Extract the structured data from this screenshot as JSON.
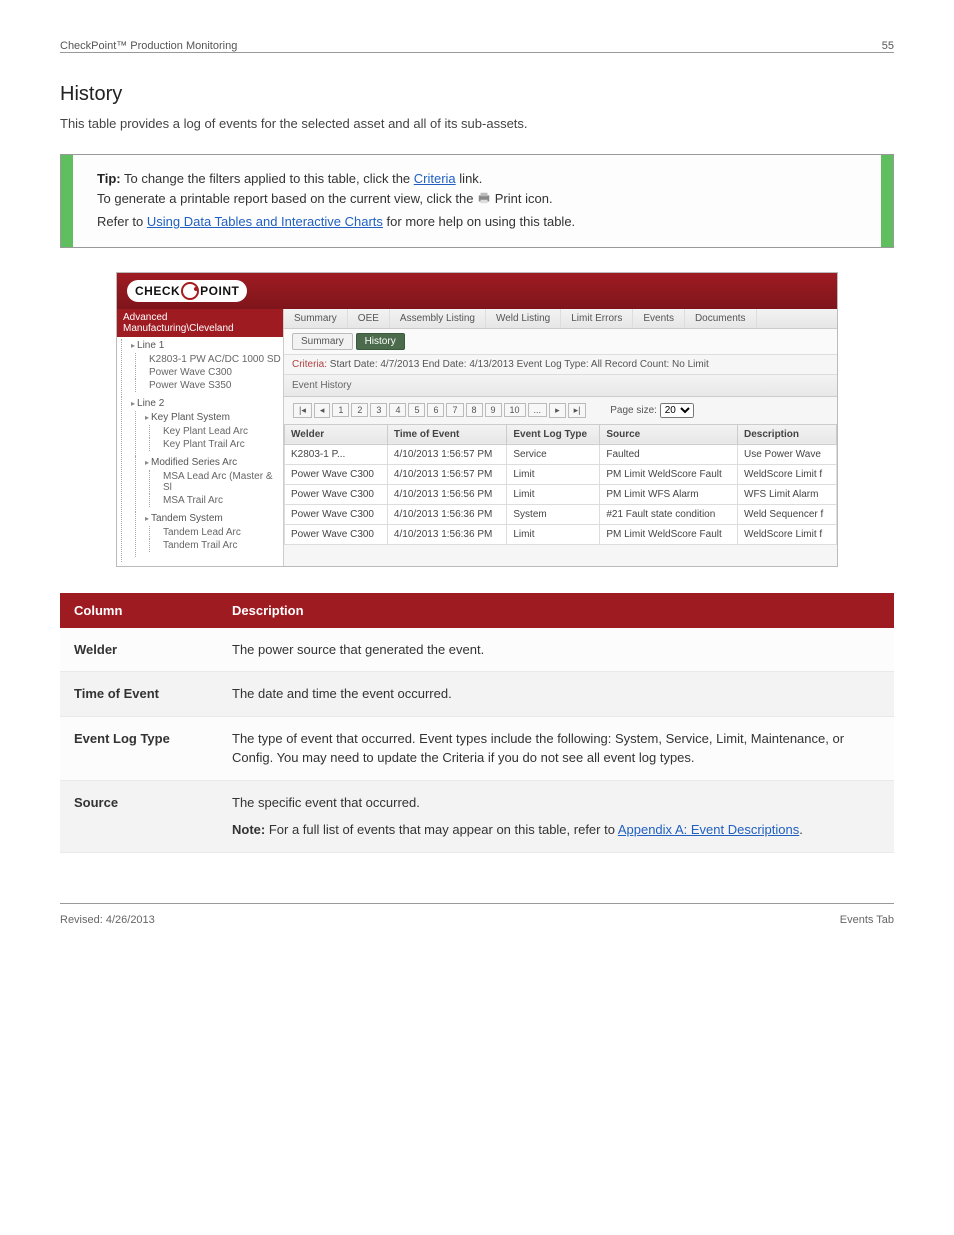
{
  "header": {
    "section": "CheckPoint™ Production Monitoring",
    "page": "55"
  },
  "title": "History",
  "intro": "This table provides a log of events for the selected asset and all of its sub-assets.",
  "tip": {
    "label": "Tip:",
    "line1_a": "To change the filters applied to this table, click the ",
    "line1_b": "Criteria",
    "line1_c": " link.",
    "line2_a": "To generate a printable report based on the current view, click the ",
    "line2_b": "Print icon.",
    "line3_a": "Refer to ",
    "line3_b": "Using Data Tables and Interactive Charts",
    "line3_c": " for more help on using this table."
  },
  "shot": {
    "logo_a": "CHECK",
    "logo_b": "POINT",
    "tree_root": "Advanced Manufacturing\\Cleveland",
    "tree": [
      {
        "t": "Line 1",
        "c": [
          "K2803-1 PW AC/DC 1000 SD",
          "Power Wave C300",
          "Power Wave S350"
        ]
      },
      {
        "t": "Line 2",
        "c": [
          {
            "t": "Key Plant System",
            "c": [
              "Key Plant Lead Arc",
              "Key Plant Trail Arc"
            ]
          },
          {
            "t": "Modified Series Arc",
            "c": [
              "MSA Lead Arc (Master & Sl",
              "MSA Trail Arc"
            ]
          },
          {
            "t": "Tandem System",
            "c": [
              "Tandem Lead Arc",
              "Tandem Trail Arc"
            ]
          }
        ]
      }
    ],
    "tabs": [
      "Summary",
      "OEE",
      "Assembly Listing",
      "Weld Listing",
      "Limit Errors",
      "Events",
      "Documents"
    ],
    "subtabs": {
      "a": "Summary",
      "b": "History"
    },
    "criteria": {
      "lbl": "Criteria:",
      "text": "Start Date: 4/7/2013 End Date: 4/13/2013 Event Log Type: All Record Count: No Limit"
    },
    "eh": "Event History",
    "pager": {
      "pages": [
        "|◂",
        "◂",
        "1",
        "2",
        "3",
        "4",
        "5",
        "6",
        "7",
        "8",
        "9",
        "10",
        "...",
        "▸",
        "▸|"
      ],
      "ps_label": "Page size:",
      "ps_val": "20"
    },
    "cols": [
      "Welder",
      "Time of Event",
      "Event Log Type",
      "Source",
      "Description"
    ],
    "rows": [
      [
        "K2803-1 P...",
        "4/10/2013 1:56:57 PM",
        "Service",
        "Faulted",
        "Use Power Wave"
      ],
      [
        "Power Wave C300",
        "4/10/2013 1:56:57 PM",
        "Limit",
        "PM Limit WeldScore Fault",
        "WeldScore Limit f"
      ],
      [
        "Power Wave C300",
        "4/10/2013 1:56:56 PM",
        "Limit",
        "PM Limit WFS Alarm",
        "WFS Limit Alarm"
      ],
      [
        "Power Wave C300",
        "4/10/2013 1:56:36 PM",
        "System",
        "#21 Fault state condition",
        "Weld Sequencer f"
      ],
      [
        "Power Wave C300",
        "4/10/2013 1:56:36 PM",
        "Limit",
        "PM Limit WeldScore Fault",
        "WeldScore Limit f"
      ]
    ]
  },
  "desc": {
    "h1": "Column",
    "h2": "Description",
    "rows": [
      {
        "k": "Welder",
        "v": "The power source that generated the event."
      },
      {
        "k": "Time of Event",
        "v": "The date and time the event occurred."
      },
      {
        "k": "Event Log Type",
        "v": "The type of event that occurred. Event types include the following: System, Service, Limit, Maintenance, or Config. You may need to update the Criteria if you do not see all event log types."
      },
      {
        "k": "Source",
        "va": "The specific event that occurred.",
        "note_label": "Note:",
        "note": " For a full list of events that may appear on this table, refer to ",
        "link": "Appendix A: Event Descriptions",
        "tail": "."
      }
    ]
  },
  "footer": {
    "left": "Revised: 4/26/2013",
    "right": "Events Tab"
  }
}
